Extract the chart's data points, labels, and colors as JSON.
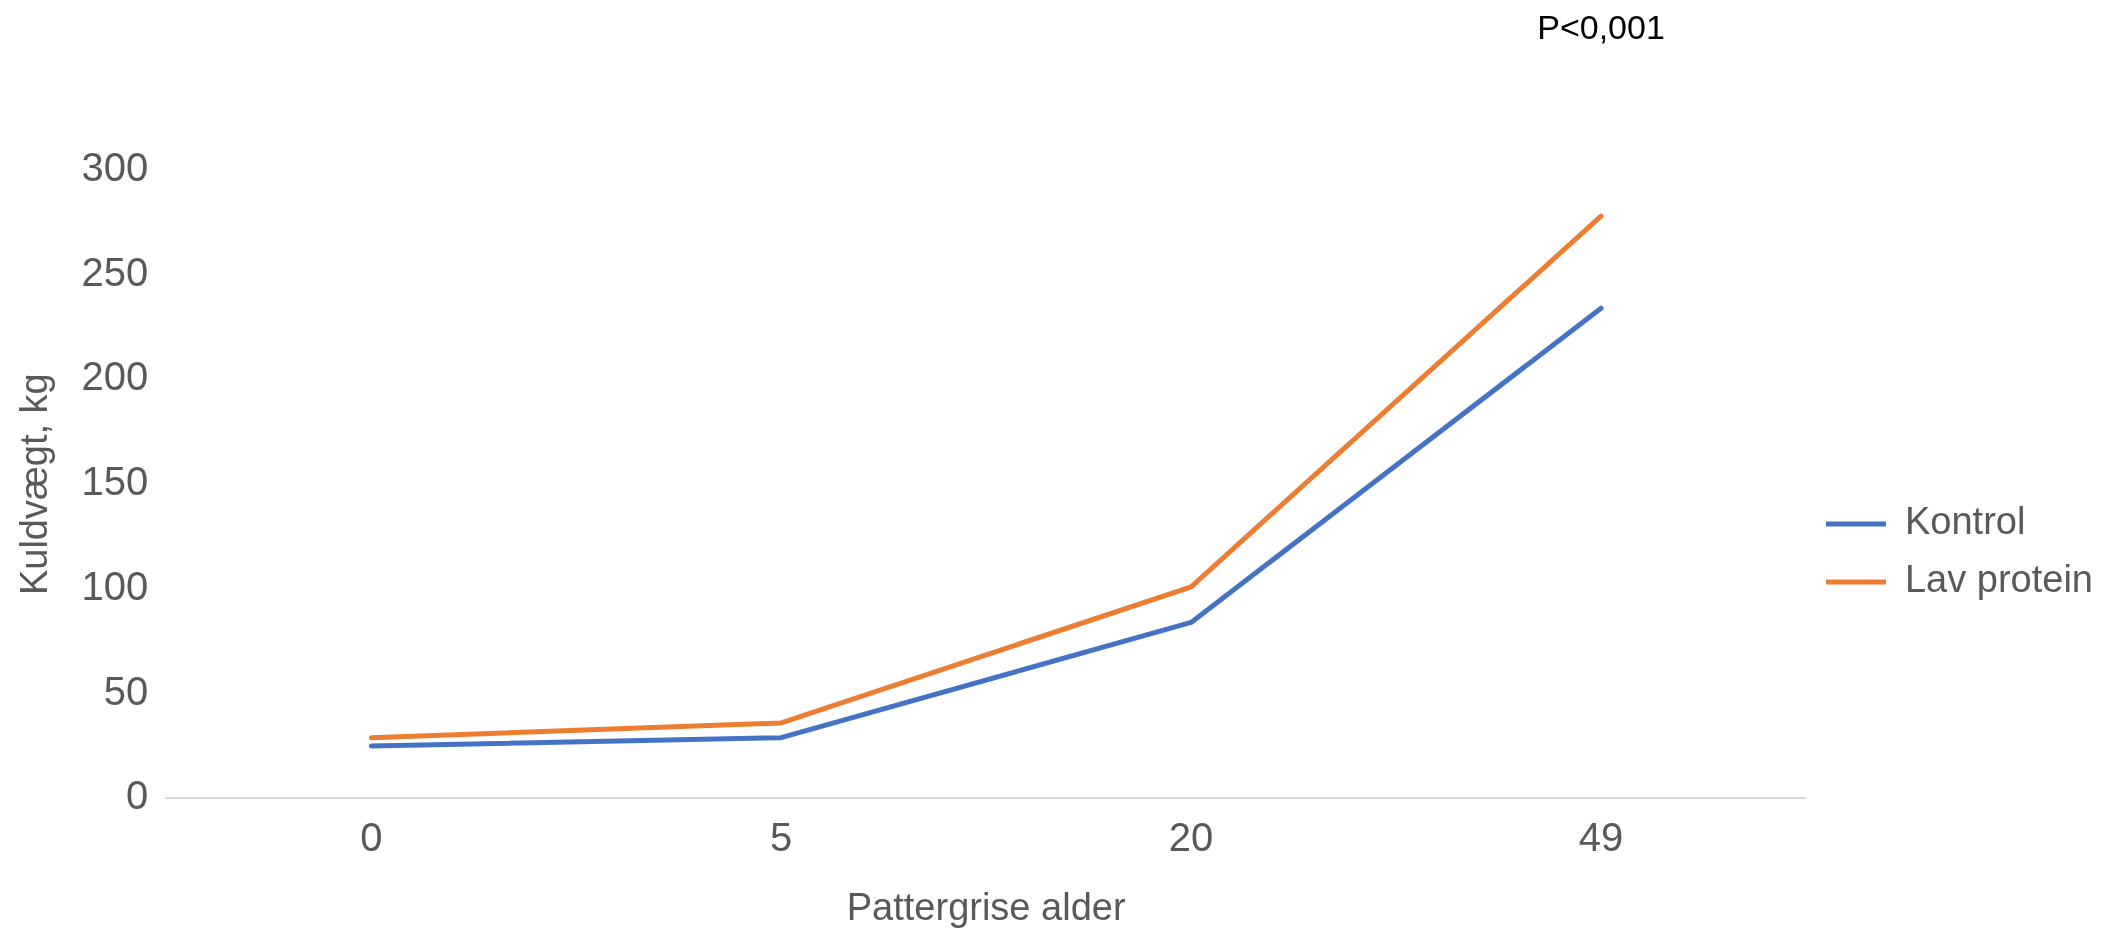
{
  "chart_data": {
    "type": "line",
    "xlabel": "Pattergrise alder",
    "ylabel": "Kuldvægt, kg",
    "categories": [
      "0",
      "5",
      "20",
      "49"
    ],
    "series": [
      {
        "name": "Kontrol",
        "color": "#4472c4",
        "values": [
          25,
          29,
          84,
          234
        ]
      },
      {
        "name": "Lav protein",
        "color": "#ed7d31",
        "values": [
          29,
          36,
          101,
          278
        ]
      }
    ],
    "ylim": [
      0,
      300
    ],
    "yticks": [
      0,
      50,
      100,
      150,
      200,
      250,
      300
    ],
    "grid": false,
    "legend": "right",
    "marker": "none",
    "line_style": "solid",
    "annotations": [
      "P<0,001"
    ]
  }
}
